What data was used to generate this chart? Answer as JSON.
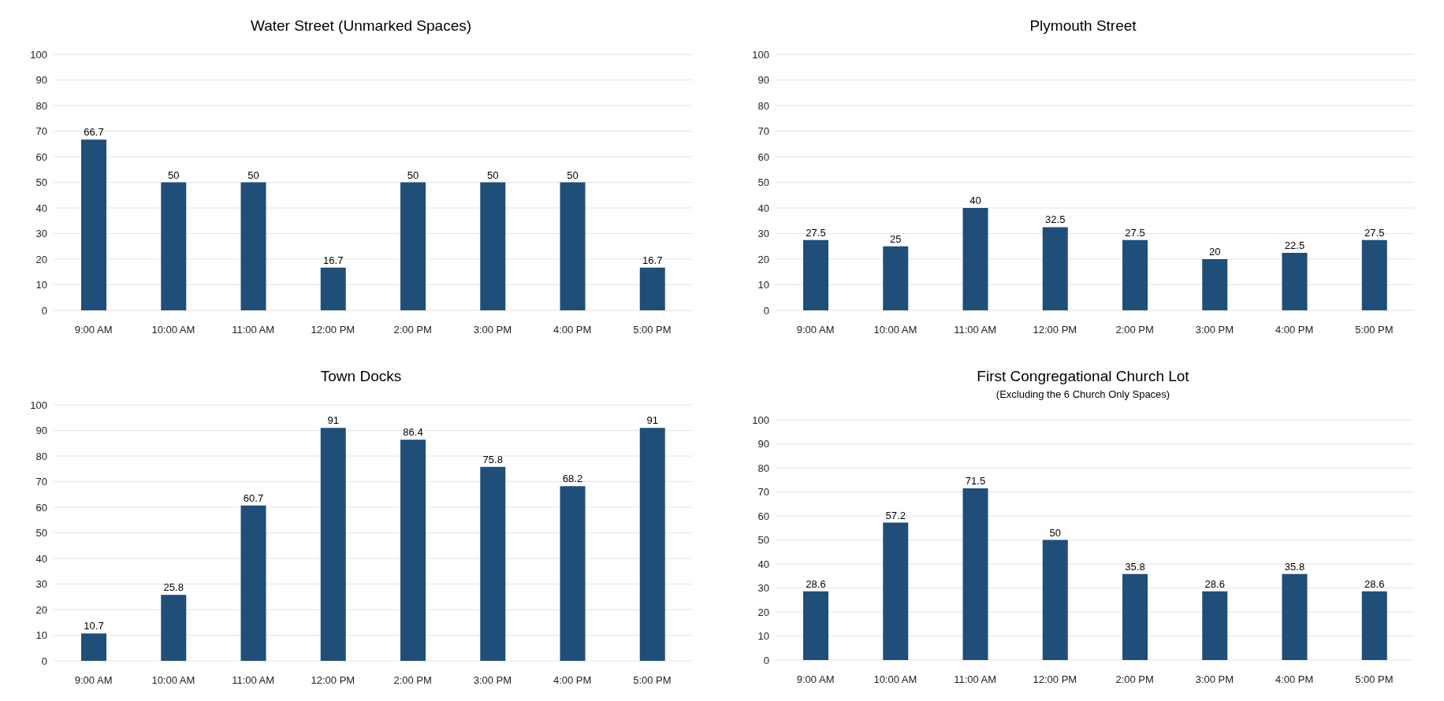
{
  "chart_data": [
    {
      "type": "bar",
      "title": "Water Street (Unmarked Spaces)",
      "categories": [
        "9:00 AM",
        "10:00 AM",
        "11:00 AM",
        "12:00 PM",
        "2:00 PM",
        "3:00 PM",
        "4:00 PM",
        "5:00 PM"
      ],
      "values": [
        66.7,
        50,
        50,
        16.7,
        50,
        50,
        50,
        16.7
      ],
      "color": "#1f4e79",
      "ylim": [
        0,
        100
      ],
      "yticks": [
        0,
        10,
        20,
        30,
        40,
        50,
        60,
        70,
        80,
        90,
        100
      ],
      "grid": "y",
      "data_labels": true
    },
    {
      "type": "bar",
      "title": "Plymouth Street",
      "categories": [
        "9:00 AM",
        "10:00 AM",
        "11:00 AM",
        "12:00 PM",
        "2:00 PM",
        "3:00 PM",
        "4:00 PM",
        "5:00 PM"
      ],
      "values": [
        27.5,
        25,
        40,
        32.5,
        27.5,
        20,
        22.5,
        27.5
      ],
      "color": "#1f4e79",
      "ylim": [
        0,
        100
      ],
      "yticks": [
        0,
        10,
        20,
        30,
        40,
        50,
        60,
        70,
        80,
        90,
        100
      ],
      "grid": "y",
      "data_labels": true
    },
    {
      "type": "bar",
      "title": "Town Docks",
      "categories": [
        "9:00 AM",
        "10:00 AM",
        "11:00 AM",
        "12:00 PM",
        "2:00 PM",
        "3:00 PM",
        "4:00 PM",
        "5:00 PM"
      ],
      "values": [
        10.7,
        25.8,
        60.7,
        91,
        86.4,
        75.8,
        68.2,
        91
      ],
      "color": "#1f4e79",
      "ylim": [
        0,
        100
      ],
      "yticks": [
        0,
        10,
        20,
        30,
        40,
        50,
        60,
        70,
        80,
        90,
        100
      ],
      "grid": "y",
      "data_labels": true
    },
    {
      "type": "bar",
      "title": "First Congregational Church Lot",
      "subtitle": "(Excluding the 6 Church Only Spaces)",
      "categories": [
        "9:00 AM",
        "10:00 AM",
        "11:00 AM",
        "12:00 PM",
        "2:00 PM",
        "3:00 PM",
        "4:00 PM",
        "5:00 PM"
      ],
      "values": [
        28.6,
        57.2,
        71.5,
        50,
        35.8,
        28.6,
        35.8,
        28.6
      ],
      "color": "#1f4e79",
      "ylim": [
        0,
        100
      ],
      "yticks": [
        0,
        10,
        20,
        30,
        40,
        50,
        60,
        70,
        80,
        90,
        100
      ],
      "grid": "y",
      "data_labels": true
    }
  ]
}
